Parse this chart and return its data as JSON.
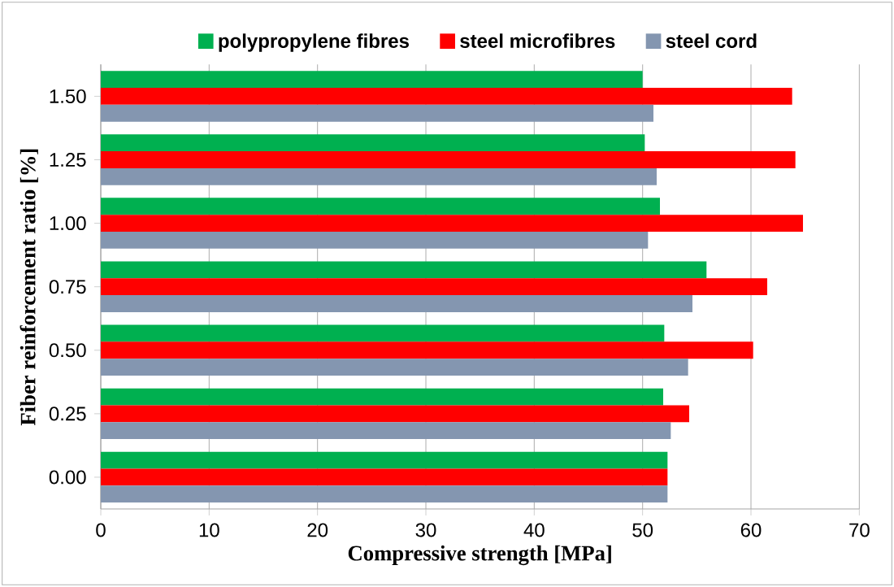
{
  "chart_data": {
    "type": "bar",
    "orientation": "horizontal",
    "xlabel": "Compressive strength [MPa]",
    "ylabel": "Fiber reinforcement ratio [%]",
    "categories": [
      "1.50",
      "1.25",
      "1.00",
      "0.75",
      "0.50",
      "0.25",
      "0.00"
    ],
    "series": [
      {
        "name": "polypropylene fibres",
        "color": "#00b050",
        "values": [
          50.0,
          50.2,
          51.6,
          55.9,
          52.0,
          51.9,
          52.3
        ]
      },
      {
        "name": "steel microfibres",
        "color": "#ff0000",
        "values": [
          63.8,
          64.1,
          64.8,
          61.5,
          60.2,
          54.3,
          52.3
        ]
      },
      {
        "name": "steel cord",
        "color": "#8496b0",
        "values": [
          51.0,
          51.3,
          50.5,
          54.6,
          54.2,
          52.6,
          52.3
        ]
      }
    ],
    "xlim": [
      0,
      70
    ],
    "xticks": [
      0,
      10,
      20,
      30,
      40,
      50,
      60,
      70
    ],
    "grid": "x",
    "legend": "top"
  }
}
